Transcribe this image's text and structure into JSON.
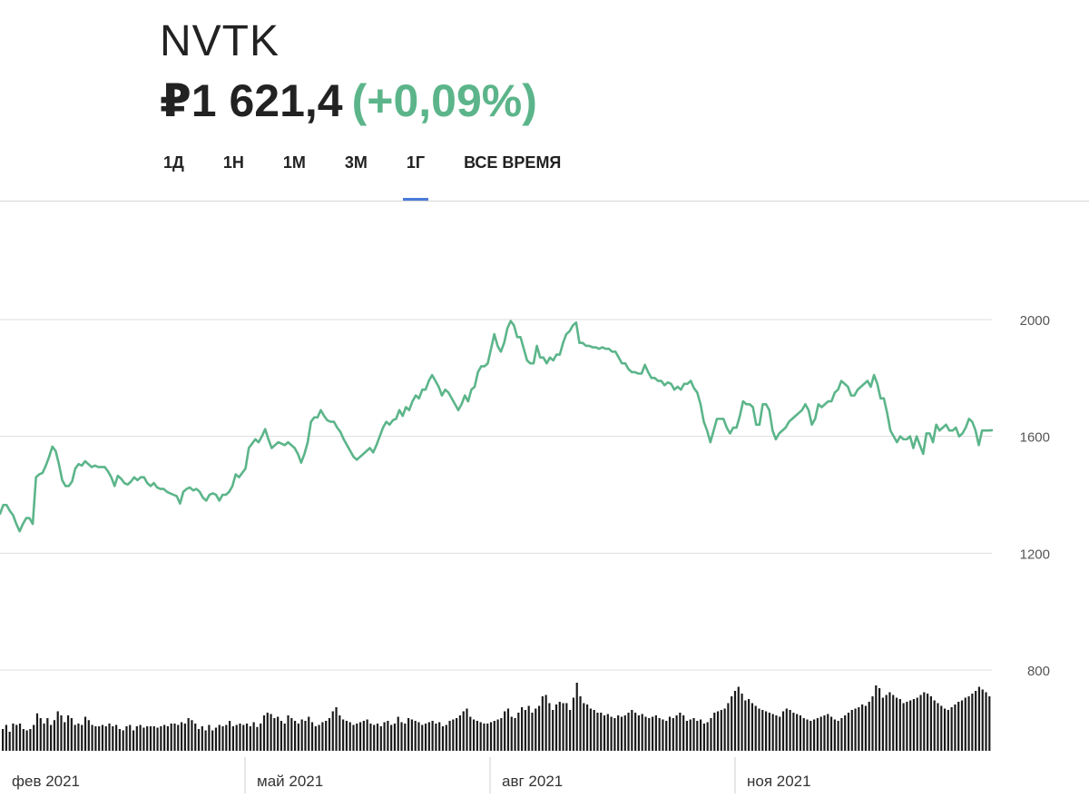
{
  "header": {
    "ticker": "NVTK",
    "price": "₽1 621,4",
    "change": "(+0,09%)"
  },
  "tabs": [
    {
      "label": "1Д",
      "active": false
    },
    {
      "label": "1Н",
      "active": false
    },
    {
      "label": "1М",
      "active": false
    },
    {
      "label": "3М",
      "active": false
    },
    {
      "label": "1Г",
      "active": true
    },
    {
      "label": "ВСЕ ВРЕМЯ",
      "active": false
    }
  ],
  "colors": {
    "line": "#5cb58a",
    "positive": "#5cb58a",
    "active_tab": "#4a7bd9",
    "volume": "#1a1a1a",
    "grid": "#dddddd"
  },
  "chart_data": {
    "type": "line",
    "title": "",
    "xlabel": "",
    "ylabel": "",
    "ylim": [
      800,
      2000
    ],
    "y_ticks": [
      "2000",
      "1600",
      "1200",
      "800"
    ],
    "x_ticks": [
      "фев 2021",
      "май 2021",
      "авг 2021",
      "ноя 2021"
    ],
    "grid": true,
    "series": [
      {
        "values": [
          1335,
          1365,
          1365,
          1345,
          1330,
          1300,
          1275,
          1300,
          1320,
          1320,
          1300,
          1460,
          1470,
          1475,
          1500,
          1530,
          1565,
          1550,
          1505,
          1450,
          1430,
          1430,
          1445,
          1490,
          1505,
          1500,
          1515,
          1505,
          1495,
          1500,
          1495,
          1495,
          1495,
          1480,
          1460,
          1430,
          1465,
          1455,
          1440,
          1435,
          1445,
          1460,
          1450,
          1460,
          1460,
          1440,
          1430,
          1440,
          1425,
          1420,
          1420,
          1410,
          1405,
          1400,
          1395,
          1370,
          1410,
          1420,
          1425,
          1415,
          1420,
          1410,
          1390,
          1380,
          1400,
          1405,
          1400,
          1380,
          1400,
          1400,
          1410,
          1430,
          1470,
          1460,
          1475,
          1490,
          1560,
          1575,
          1590,
          1580,
          1600,
          1625,
          1590,
          1560,
          1570,
          1580,
          1575,
          1570,
          1580,
          1570,
          1560,
          1540,
          1510,
          1540,
          1580,
          1650,
          1665,
          1665,
          1690,
          1670,
          1655,
          1650,
          1650,
          1630,
          1615,
          1590,
          1570,
          1550,
          1530,
          1520,
          1530,
          1540,
          1550,
          1560,
          1545,
          1570,
          1600,
          1630,
          1650,
          1640,
          1655,
          1660,
          1690,
          1670,
          1700,
          1690,
          1720,
          1740,
          1730,
          1760,
          1760,
          1790,
          1810,
          1790,
          1770,
          1740,
          1760,
          1750,
          1730,
          1710,
          1690,
          1710,
          1740,
          1720,
          1760,
          1770,
          1820,
          1840,
          1840,
          1850,
          1900,
          1950,
          1910,
          1890,
          1920,
          1970,
          1995,
          1980,
          1940,
          1940,
          1900,
          1860,
          1850,
          1850,
          1910,
          1870,
          1870,
          1850,
          1870,
          1860,
          1880,
          1880,
          1920,
          1950,
          1960,
          1980,
          1990,
          1920,
          1920,
          1910,
          1910,
          1905,
          1905,
          1900,
          1905,
          1900,
          1900,
          1890,
          1890,
          1870,
          1850,
          1850,
          1830,
          1820,
          1820,
          1815,
          1815,
          1845,
          1820,
          1800,
          1800,
          1790,
          1790,
          1775,
          1785,
          1780,
          1760,
          1770,
          1760,
          1780,
          1780,
          1790,
          1765,
          1750,
          1710,
          1650,
          1620,
          1580,
          1620,
          1660,
          1660,
          1660,
          1630,
          1610,
          1630,
          1630,
          1670,
          1720,
          1710,
          1710,
          1700,
          1640,
          1640,
          1710,
          1710,
          1690,
          1620,
          1590,
          1610,
          1620,
          1630,
          1650,
          1660,
          1670,
          1680,
          1690,
          1710,
          1690,
          1640,
          1660,
          1710,
          1700,
          1710,
          1720,
          1720,
          1750,
          1760,
          1790,
          1780,
          1770,
          1740,
          1740,
          1760,
          1770,
          1780,
          1790,
          1770,
          1810,
          1780,
          1730,
          1730,
          1680,
          1620,
          1600,
          1580,
          1600,
          1590,
          1590,
          1600,
          1560,
          1600,
          1570,
          1540,
          1610,
          1610,
          1580,
          1640,
          1620,
          1630,
          1640,
          1620,
          1620,
          1630,
          1600,
          1610,
          1630,
          1660,
          1650,
          1620,
          1570,
          1620,
          1620,
          1620,
          1621
        ]
      }
    ],
    "volume": [
      32,
      38,
      28,
      40,
      38,
      40,
      32,
      30,
      32,
      38,
      55,
      48,
      40,
      48,
      38,
      45,
      58,
      52,
      42,
      52,
      48,
      38,
      40,
      38,
      50,
      45,
      38,
      36,
      36,
      38,
      36,
      40,
      36,
      38,
      32,
      30,
      36,
      38,
      30,
      36,
      38,
      34,
      36,
      36,
      36,
      34,
      36,
      38,
      36,
      40,
      40,
      38,
      42,
      40,
      48,
      45,
      40,
      32,
      36,
      30,
      38,
      30,
      34,
      38,
      36,
      38,
      44,
      36,
      38,
      40,
      38,
      40,
      36,
      42,
      35,
      40,
      52,
      56,
      54,
      48,
      50,
      44,
      40,
      52,
      48,
      44,
      40,
      46,
      44,
      50,
      42,
      36,
      38,
      42,
      44,
      48,
      58,
      64,
      52,
      46,
      44,
      42,
      38,
      40,
      42,
      44,
      46,
      40,
      38,
      40,
      36,
      42,
      44,
      38,
      40,
      50,
      42,
      40,
      48,
      46,
      44,
      42,
      38,
      40,
      42,
      44,
      40,
      42,
      36,
      38,
      44,
      46,
      48,
      52,
      58,
      62,
      50,
      46,
      44,
      42,
      40,
      40,
      42,
      44,
      46,
      48,
      58,
      62,
      50,
      48,
      56,
      64,
      60,
      66,
      56,
      62,
      66,
      80,
      82,
      70,
      60,
      68,
      72,
      70,
      70,
      60,
      78,
      100,
      80,
      70,
      68,
      62,
      60,
      56,
      56,
      52,
      54,
      50,
      48,
      52,
      50,
      52,
      56,
      60,
      56,
      52,
      54,
      50,
      48,
      50,
      52,
      48,
      46,
      44,
      50,
      48,
      52,
      56,
      52,
      44,
      46,
      48,
      44,
      46,
      40,
      42,
      48,
      56,
      58,
      60,
      62,
      70,
      80,
      88,
      94,
      84,
      74,
      76,
      70,
      66,
      62,
      60,
      58,
      56,
      54,
      52,
      50,
      58,
      62,
      60,
      56,
      54,
      52,
      48,
      46,
      44,
      46,
      48,
      50,
      52,
      54,
      50,
      46,
      44,
      48,
      52,
      56,
      60,
      62,
      64,
      68,
      66,
      72,
      80,
      96,
      92,
      78,
      82,
      86,
      82,
      78,
      76,
      70,
      72,
      74,
      76,
      78,
      82,
      86,
      84,
      80,
      74,
      70,
      66,
      62,
      60,
      64,
      68,
      72,
      74,
      78,
      80,
      84,
      88,
      94,
      90,
      86,
      80
    ]
  }
}
